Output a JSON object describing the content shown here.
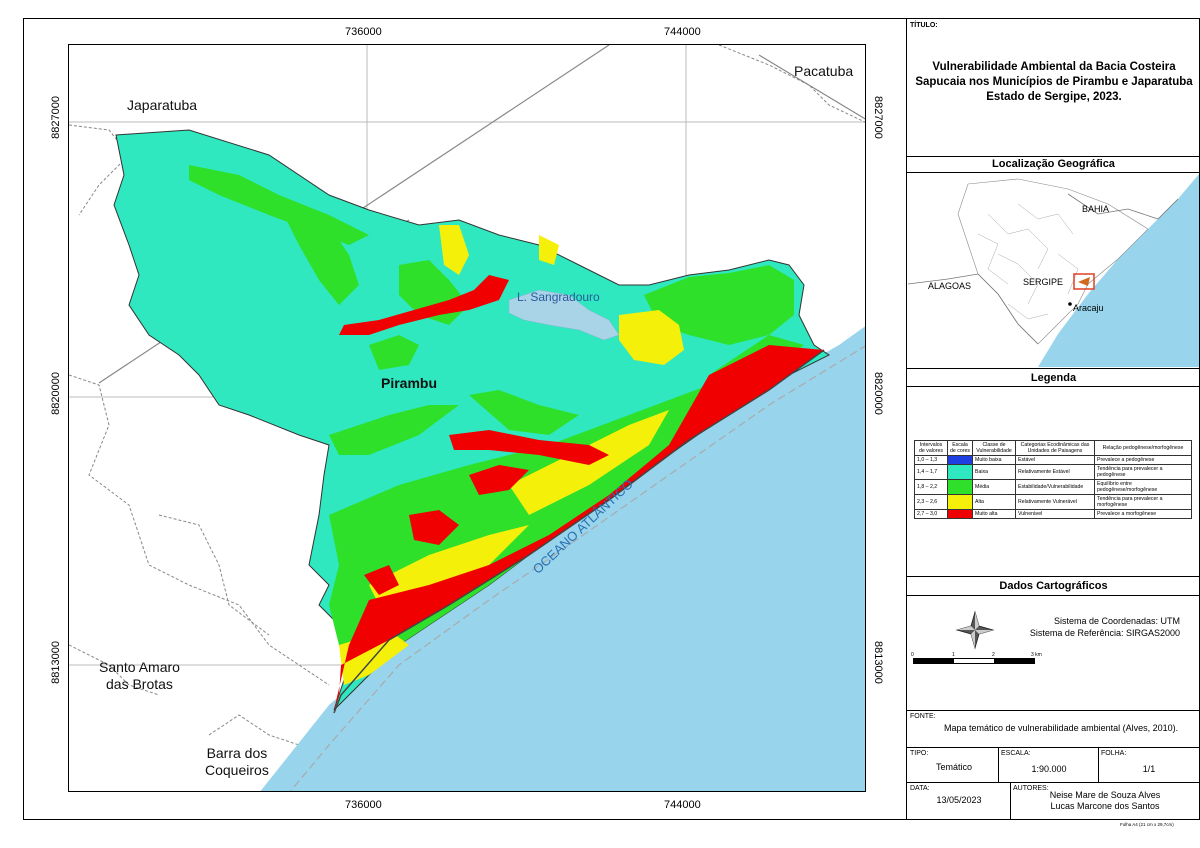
{
  "map": {
    "coords_top": [
      "736000",
      "744000"
    ],
    "coords_bottom": [
      "736000",
      "744000"
    ],
    "coords_left": [
      "8827000",
      "8820000",
      "8813000"
    ],
    "coords_right": [
      "8827000",
      "8820000",
      "8813000"
    ],
    "places": {
      "japaratuba": "Japaratuba",
      "pacatuba": "Pacatuba",
      "pirambu": "Pirambu",
      "santo_amaro": "Santo Amaro\ndas Brotas",
      "barra": "Barra dos\nCoqueiros",
      "lagoa": "L. Sangradouro",
      "oceano": "OCEANO ATLÂNTICO"
    },
    "colors": {
      "ocean": "#98d5ec",
      "muito_baixa": "#1f3fe0",
      "baixa": "#2fe8c0",
      "media": "#2ee02a",
      "alta": "#f5f00a",
      "muito_alta": "#f00000",
      "lagoon": "#a9d3e6"
    }
  },
  "panel": {
    "title_label": "TÍTULO:",
    "title": "Vulnerabilidade Ambiental da Bacia Costeira Sapucaia nos Municípios de Pirambu e Japaratuba Estado de Sergipe, 2023.",
    "location_header": "Localização Geográfica",
    "loc_labels": {
      "bahia": "BAHIA",
      "alagoas": "ALAGOAS",
      "sergipe": "SERGIPE",
      "aracaju": "Aracaju"
    },
    "legend_header": "Legenda",
    "legend_table": {
      "headers": [
        "Intervalos de valores",
        "Escala de cores",
        "Classe de Vulnerabilidade",
        "Categorias Ecodinâmicas das Unidades de Paisagens",
        "Relação pedogênese/morfogênese"
      ],
      "rows": [
        {
          "interval": "1,0 – 1,3",
          "color": "#1f3fe0",
          "class": "Muito baixa",
          "category": "Estável",
          "relation": "Prevalece a pedogênese"
        },
        {
          "interval": "1,4 – 1,7",
          "color": "#2fe8c0",
          "class": "Baixa",
          "category": "Relativamente Estável",
          "relation": "Tendência para prevalecer a pedogênese"
        },
        {
          "interval": "1,8 – 2,2",
          "color": "#2ee02a",
          "class": "Média",
          "category": "Estabilidade/Vulnerabilidade",
          "relation": "Equilíbrio entre pedogênese/morfogênese"
        },
        {
          "interval": "2,3 – 2,6",
          "color": "#f5f00a",
          "class": "Alta",
          "category": "Relativamente Vulnerável",
          "relation": "Tendência para prevalecer a morfogênese"
        },
        {
          "interval": "2,7 – 3,0",
          "color": "#f00000",
          "class": "Muito alta",
          "category": "Vulnerável",
          "relation": "Prevalece a morfogênese"
        }
      ]
    },
    "carto_header": "Dados Cartográficos",
    "coord_system": "Sistema de Coordenadas: UTM",
    "ref_system": "Sistema de Referência: SIRGAS2000",
    "scalebar_labels": [
      "0",
      "1",
      "2",
      "3 km"
    ],
    "fonte_label": "FONTE:",
    "fonte": "Mapa temático de vulnerabilidade ambiental (Alves, 2010).",
    "tipo_label": "TIPO:",
    "tipo": "Temático",
    "escala_label": "ESCALA:",
    "escala": "1:90.000",
    "folha_label": "FOLHA:",
    "folha": "1/1",
    "data_label": "DATA:",
    "data": "13/05/2023",
    "autores_label": "AUTORES:",
    "autor1": "Neise Mare de Souza Alves",
    "autor2": "Lucas Marcone dos Santos",
    "footnote": "Folha A4 (21 cm x 29,7cm)"
  }
}
